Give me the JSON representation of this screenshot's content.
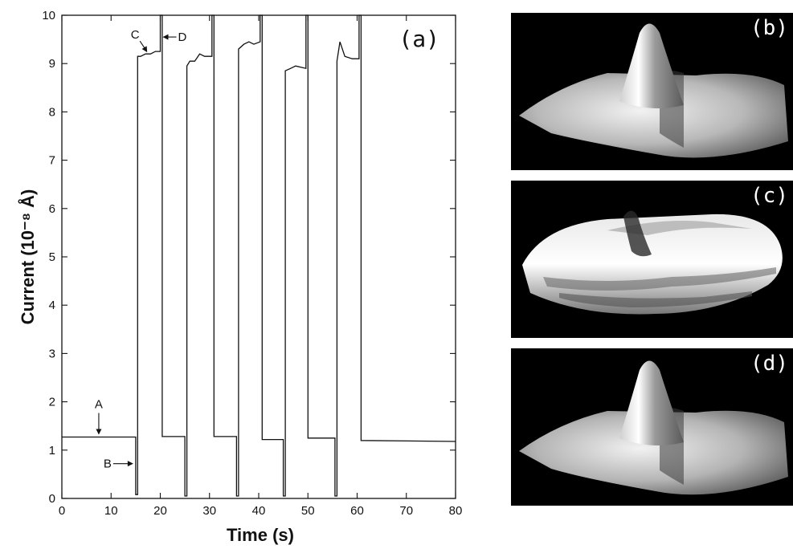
{
  "chart_data": {
    "type": "line",
    "xlabel": "Time (s)",
    "ylabel": "Current (10⁻⁸ Å)",
    "xlim": [
      0,
      80
    ],
    "ylim": [
      0,
      10
    ],
    "xticks": [
      0,
      10,
      20,
      30,
      40,
      50,
      60,
      70,
      80
    ],
    "yticks": [
      0,
      1,
      2,
      3,
      4,
      5,
      6,
      7,
      8,
      9,
      10
    ],
    "grid": false,
    "series": [
      {
        "x": [
          0,
          15,
          15,
          15.4,
          15.4,
          16,
          17,
          18,
          19,
          20,
          20,
          20.4,
          20.4,
          25,
          25,
          25.4,
          25.4,
          26,
          27,
          28,
          29,
          30.5,
          30.5,
          30.9,
          30.9,
          35.5,
          35.5,
          35.9,
          35.9,
          37,
          38,
          39,
          40.3,
          40.3,
          40.7,
          40.7,
          45,
          45,
          45.4,
          45.4,
          46.5,
          47.5,
          49.6,
          49.6,
          50,
          50,
          55.5,
          55.5,
          55.9,
          55.9,
          56.5,
          57.5,
          59,
          60.4,
          60.4,
          60.8,
          60.8,
          80
        ],
        "y": [
          1.27,
          1.27,
          0.08,
          0.08,
          9.15,
          9.15,
          9.2,
          9.2,
          9.25,
          9.25,
          10,
          10,
          1.28,
          1.28,
          0.05,
          0.05,
          8.95,
          9.05,
          9.05,
          9.2,
          9.15,
          9.15,
          10,
          10,
          1.28,
          1.28,
          0.05,
          0.05,
          9.3,
          9.4,
          9.45,
          9.4,
          9.45,
          10,
          10,
          1.22,
          1.22,
          0.05,
          0.05,
          8.85,
          8.9,
          8.95,
          8.9,
          10,
          10,
          1.25,
          1.25,
          0.05,
          0.05,
          9.05,
          9.45,
          9.15,
          9.1,
          9.1,
          10,
          10,
          1.2,
          1.18
        ]
      }
    ],
    "annotations": [
      {
        "text": "A",
        "x": 7.5,
        "y": 1.27
      },
      {
        "text": "B",
        "x": 15,
        "y": 0.72
      },
      {
        "text": "C",
        "x": 17.5,
        "y": 9.2
      },
      {
        "text": "D",
        "x": 20,
        "y": 9.55
      }
    ],
    "panel_label": "(a)"
  },
  "images": [
    {
      "label": "(b)",
      "surface": "peak"
    },
    {
      "label": "(c)",
      "surface": "ridge"
    },
    {
      "label": "(d)",
      "surface": "peak"
    }
  ]
}
